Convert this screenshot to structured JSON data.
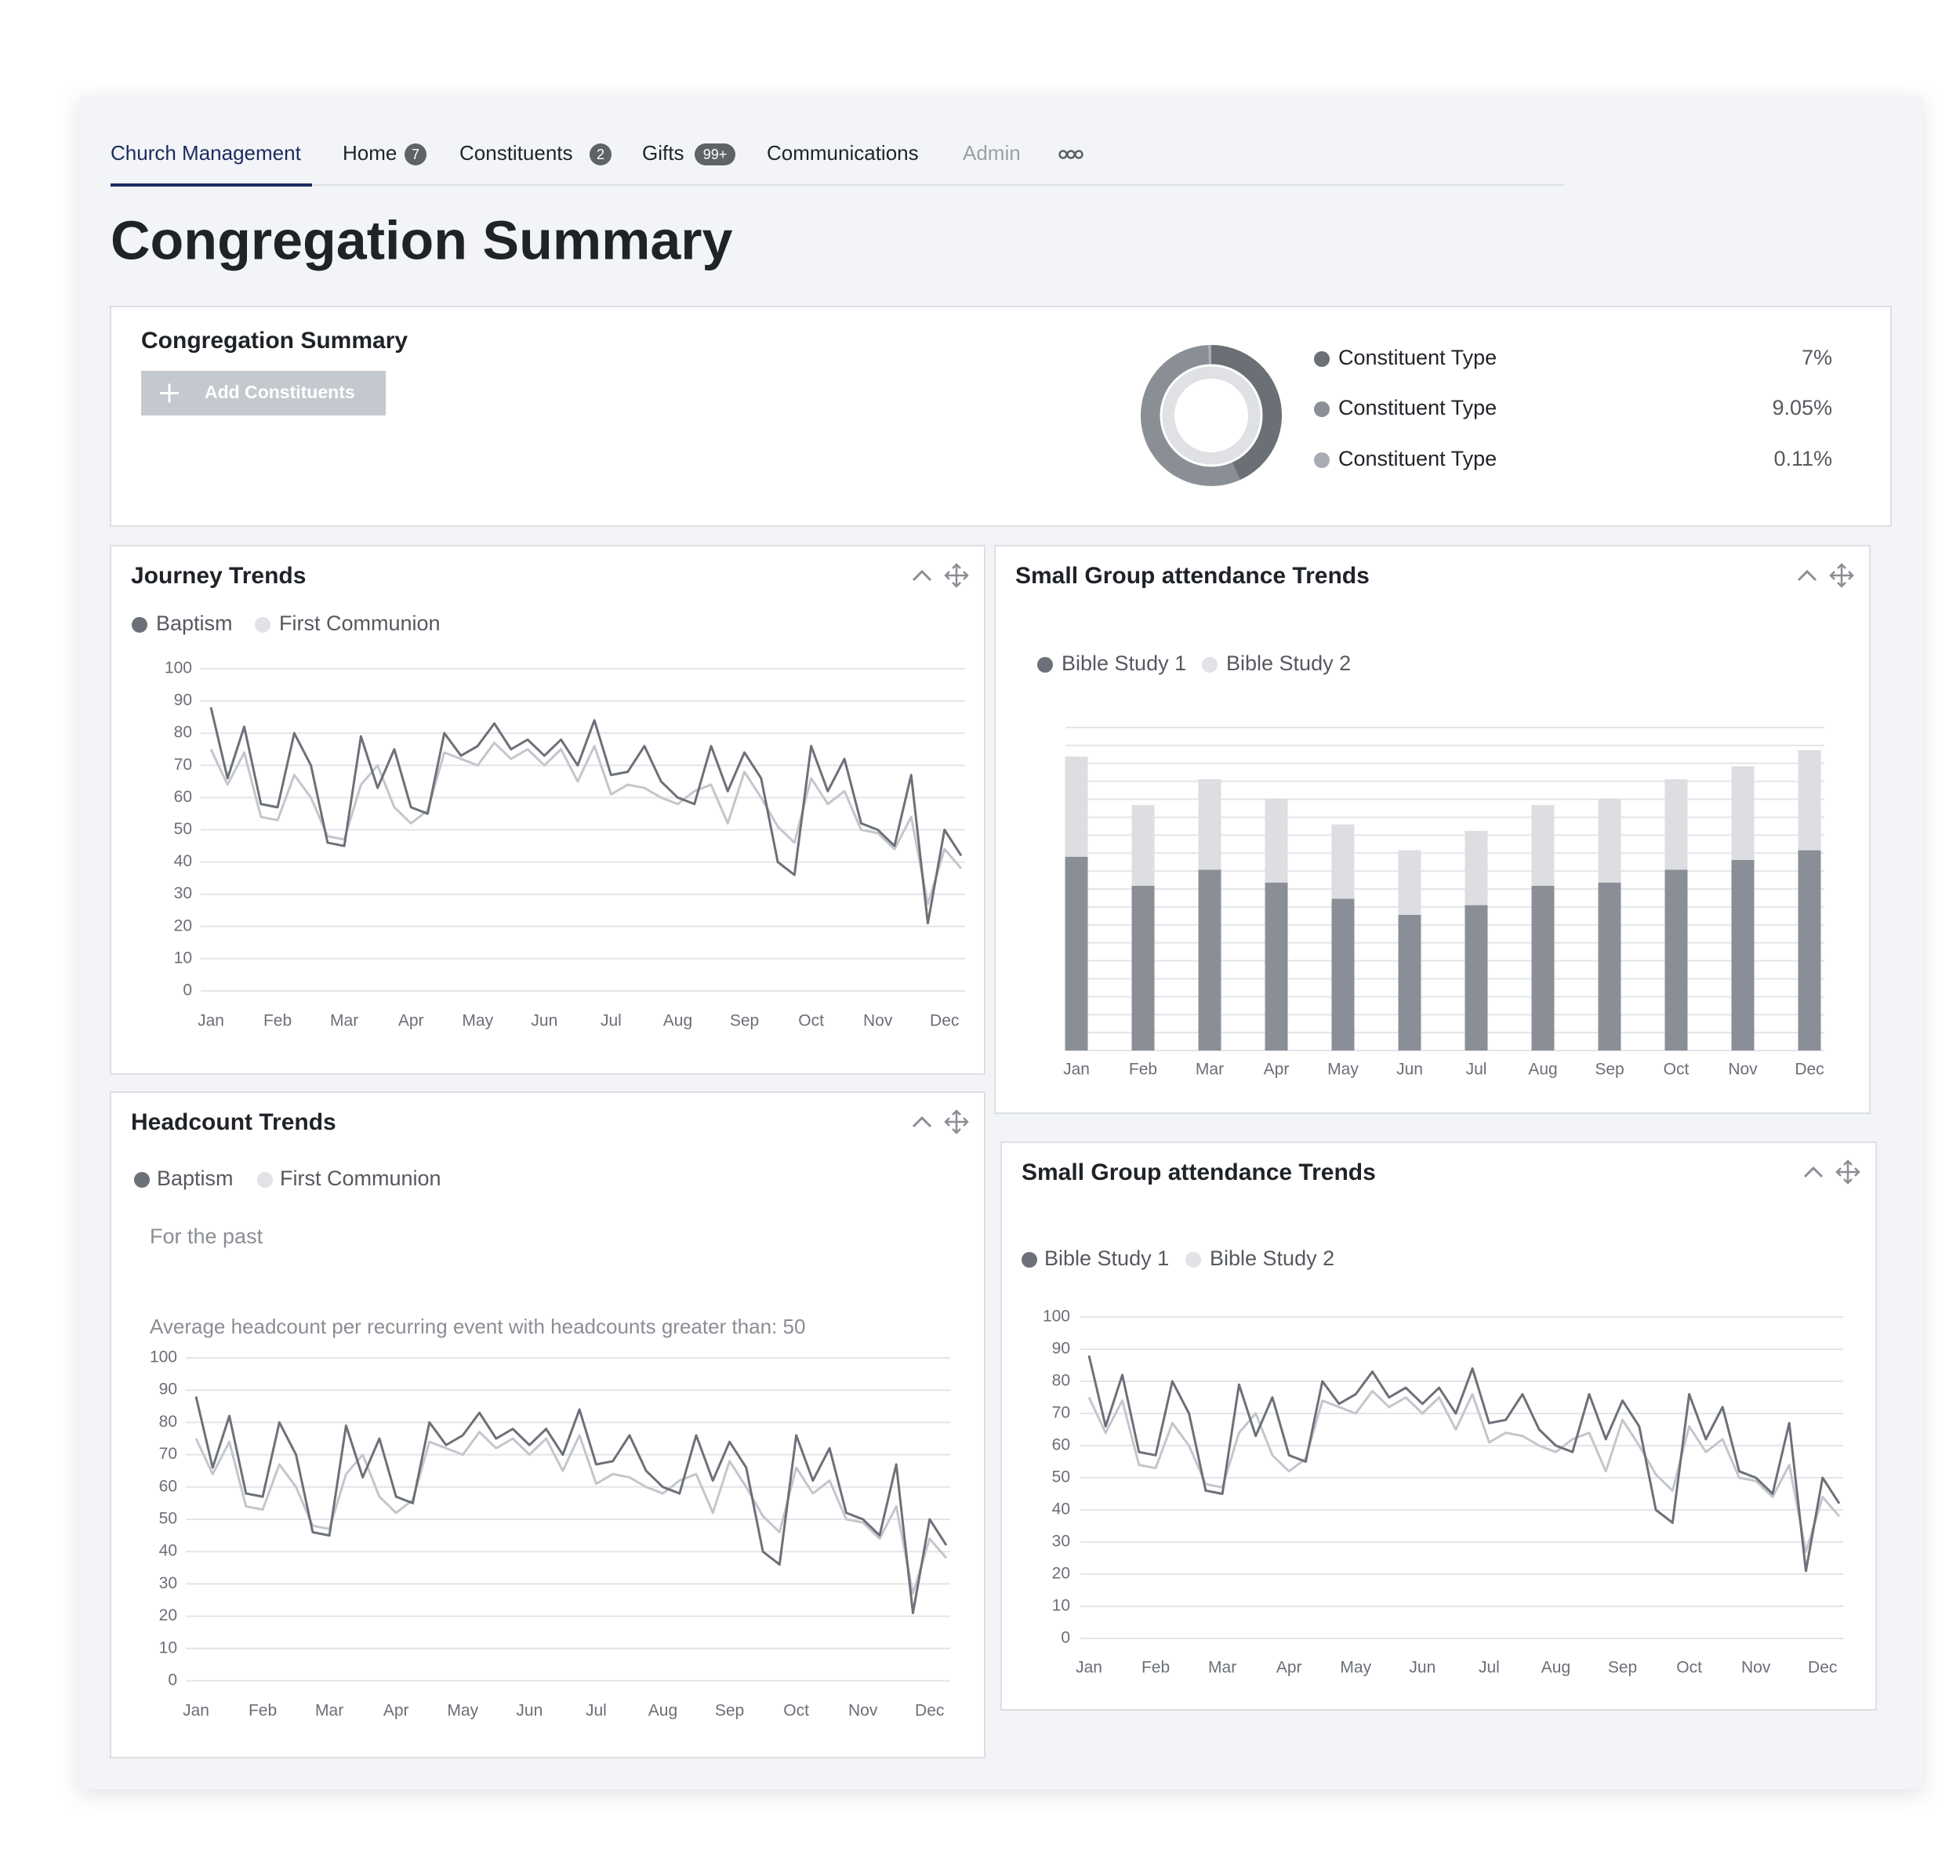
{
  "nav": [
    {
      "label": "Church Management"
    },
    {
      "label": "Home",
      "badge": "7"
    },
    {
      "label": "Constituents",
      "badge": "2"
    },
    {
      "label": "Gifts",
      "badge": "99+"
    },
    {
      "label": "Communications"
    },
    {
      "label": "Admin"
    }
  ],
  "title": "Congregation Summary",
  "summary": {
    "title": "Congregation Summary",
    "button": "Add Constituents"
  },
  "chart_data": [
    {
      "type": "donut",
      "categories": [
        "Constituent Type",
        "Constituent Type",
        "Constituent Type"
      ],
      "values": [
        7,
        9.05,
        0.11
      ],
      "value_labels": [
        "7%",
        "9.05%",
        "0.11%"
      ],
      "colors": [
        "#6b6f76",
        "#8a8e95",
        "#a9adb3"
      ]
    },
    {
      "type": "line",
      "title": "Journey Trends",
      "x": [
        0,
        0.25,
        0.5,
        0.75,
        1,
        1.25,
        1.5,
        1.75,
        2,
        2.25,
        2.5,
        2.75,
        3,
        3.25,
        3.5,
        3.75,
        4,
        4.25,
        4.5,
        4.75,
        5,
        5.25,
        5.5,
        5.75,
        6,
        6.25,
        6.5,
        6.75,
        7,
        7.25,
        7.5,
        7.75,
        8,
        8.25,
        8.5,
        8.75,
        9,
        9.25,
        9.5,
        9.75,
        10,
        10.25,
        10.5,
        10.75,
        11,
        11.25
      ],
      "xlim": [
        0,
        11.25
      ],
      "xticks": [
        {
          "value": 0,
          "label": "Jan"
        },
        {
          "value": 1,
          "label": "Feb"
        },
        {
          "value": 2,
          "label": "Mar"
        },
        {
          "value": 3,
          "label": "Apr"
        },
        {
          "value": 4,
          "label": "May"
        },
        {
          "value": 5,
          "label": "Jun"
        },
        {
          "value": 6,
          "label": "Jul"
        },
        {
          "value": 7,
          "label": "Aug"
        },
        {
          "value": 8,
          "label": "Sep"
        },
        {
          "value": 9,
          "label": "Oct"
        },
        {
          "value": 10,
          "label": "Nov"
        },
        {
          "value": 11,
          "label": "Dec"
        }
      ],
      "ylim": [
        0,
        100
      ],
      "yticks": [
        0,
        10,
        20,
        30,
        40,
        50,
        60,
        70,
        80,
        90,
        100
      ],
      "grid": true,
      "series": [
        {
          "name": "Baptism",
          "color": "#6c7078",
          "values": [
            88,
            66,
            82,
            58,
            57,
            80,
            70,
            46,
            45,
            79,
            63,
            75,
            57,
            55,
            80,
            73,
            76,
            83,
            75,
            78,
            73,
            78,
            70,
            84,
            67,
            68,
            76,
            65,
            60,
            58,
            76,
            62,
            74,
            66,
            40,
            36,
            76,
            62,
            72,
            52,
            50,
            45,
            67,
            21,
            50,
            42
          ]
        },
        {
          "name": "First Communion",
          "color": "#c3c6cb",
          "values": [
            75,
            64,
            74,
            54,
            53,
            67,
            60,
            48,
            47,
            64,
            70,
            57,
            52,
            56,
            74,
            72,
            70,
            77,
            72,
            75,
            70,
            75,
            65,
            76,
            61,
            64,
            63,
            60,
            58,
            62,
            64,
            52,
            68,
            60,
            51,
            46,
            66,
            58,
            62,
            50,
            49,
            44,
            54,
            27,
            44,
            38
          ]
        }
      ]
    },
    {
      "type": "bar",
      "title": "Small Group attendance Trends",
      "stacked": true,
      "categories": [
        "Jan",
        "Feb",
        "Mar",
        "Apr",
        "May",
        "Jun",
        "Jul",
        "Aug",
        "Sep",
        "Oct",
        "Nov",
        "Dec"
      ],
      "ylim": [
        0,
        100
      ],
      "grid": true,
      "series": [
        {
          "name": "Bible Study 1",
          "color": "#8a8f97",
          "values": [
            60,
            51,
            56,
            52,
            47,
            42,
            45,
            51,
            52,
            56,
            59,
            62
          ]
        },
        {
          "name": "Bible Study 2",
          "color": "#dcdee2",
          "values": [
            31,
            25,
            28,
            26,
            23,
            20,
            23,
            25,
            26,
            28,
            29,
            31
          ]
        }
      ]
    },
    {
      "type": "line",
      "title": "Headcount Trends",
      "subtitle": "For the past",
      "annotation": "Average headcount per recurring event with headcounts greater than: 50",
      "x": [
        0,
        0.25,
        0.5,
        0.75,
        1,
        1.25,
        1.5,
        1.75,
        2,
        2.25,
        2.5,
        2.75,
        3,
        3.25,
        3.5,
        3.75,
        4,
        4.25,
        4.5,
        4.75,
        5,
        5.25,
        5.5,
        5.75,
        6,
        6.25,
        6.5,
        6.75,
        7,
        7.25,
        7.5,
        7.75,
        8,
        8.25,
        8.5,
        8.75,
        9,
        9.25,
        9.5,
        9.75,
        10,
        10.25,
        10.5,
        10.75,
        11,
        11.25
      ],
      "xlim": [
        0,
        11.25
      ],
      "xticks": [
        {
          "value": 0,
          "label": "Jan"
        },
        {
          "value": 1,
          "label": "Feb"
        },
        {
          "value": 2,
          "label": "Mar"
        },
        {
          "value": 3,
          "label": "Apr"
        },
        {
          "value": 4,
          "label": "May"
        },
        {
          "value": 5,
          "label": "Jun"
        },
        {
          "value": 6,
          "label": "Jul"
        },
        {
          "value": 7,
          "label": "Aug"
        },
        {
          "value": 8,
          "label": "Sep"
        },
        {
          "value": 9,
          "label": "Oct"
        },
        {
          "value": 10,
          "label": "Nov"
        },
        {
          "value": 11,
          "label": "Dec"
        }
      ],
      "ylim": [
        0,
        100
      ],
      "yticks": [
        0,
        10,
        20,
        30,
        40,
        50,
        60,
        70,
        80,
        90,
        100
      ],
      "grid": true,
      "series": [
        {
          "name": "Baptism",
          "color": "#6c7078",
          "values": [
            88,
            66,
            82,
            58,
            57,
            80,
            70,
            46,
            45,
            79,
            63,
            75,
            57,
            55,
            80,
            73,
            76,
            83,
            75,
            78,
            73,
            78,
            70,
            84,
            67,
            68,
            76,
            65,
            60,
            58,
            76,
            62,
            74,
            66,
            40,
            36,
            76,
            62,
            72,
            52,
            50,
            45,
            67,
            21,
            50,
            42
          ]
        },
        {
          "name": "First Communion",
          "color": "#c3c6cb",
          "values": [
            75,
            64,
            74,
            54,
            53,
            67,
            60,
            48,
            47,
            64,
            70,
            57,
            52,
            56,
            74,
            72,
            70,
            77,
            72,
            75,
            70,
            75,
            65,
            76,
            61,
            64,
            63,
            60,
            58,
            62,
            64,
            52,
            68,
            60,
            51,
            46,
            66,
            58,
            62,
            50,
            49,
            44,
            54,
            27,
            44,
            38
          ]
        }
      ]
    },
    {
      "type": "line",
      "title": "Small Group attendance Trends",
      "x": [
        0,
        0.25,
        0.5,
        0.75,
        1,
        1.25,
        1.5,
        1.75,
        2,
        2.25,
        2.5,
        2.75,
        3,
        3.25,
        3.5,
        3.75,
        4,
        4.25,
        4.5,
        4.75,
        5,
        5.25,
        5.5,
        5.75,
        6,
        6.25,
        6.5,
        6.75,
        7,
        7.25,
        7.5,
        7.75,
        8,
        8.25,
        8.5,
        8.75,
        9,
        9.25,
        9.5,
        9.75,
        10,
        10.25,
        10.5,
        10.75,
        11,
        11.25
      ],
      "xlim": [
        0,
        11.25
      ],
      "xticks": [
        {
          "value": 0,
          "label": "Jan"
        },
        {
          "value": 1,
          "label": "Feb"
        },
        {
          "value": 2,
          "label": "Mar"
        },
        {
          "value": 3,
          "label": "Apr"
        },
        {
          "value": 4,
          "label": "May"
        },
        {
          "value": 5,
          "label": "Jun"
        },
        {
          "value": 6,
          "label": "Jul"
        },
        {
          "value": 7,
          "label": "Aug"
        },
        {
          "value": 8,
          "label": "Sep"
        },
        {
          "value": 9,
          "label": "Oct"
        },
        {
          "value": 10,
          "label": "Nov"
        },
        {
          "value": 11,
          "label": "Dec"
        }
      ],
      "ylim": [
        0,
        100
      ],
      "yticks": [
        0,
        10,
        20,
        30,
        40,
        50,
        60,
        70,
        80,
        90,
        100
      ],
      "grid": true,
      "series": [
        {
          "name": "Bible Study 1",
          "color": "#6c7078",
          "values": [
            88,
            66,
            82,
            58,
            57,
            80,
            70,
            46,
            45,
            79,
            63,
            75,
            57,
            55,
            80,
            73,
            76,
            83,
            75,
            78,
            73,
            78,
            70,
            84,
            67,
            68,
            76,
            65,
            60,
            58,
            76,
            62,
            74,
            66,
            40,
            36,
            76,
            62,
            72,
            52,
            50,
            45,
            67,
            21,
            50,
            42
          ]
        },
        {
          "name": "Bible Study 2",
          "color": "#c3c6cb",
          "values": [
            75,
            64,
            74,
            54,
            53,
            67,
            60,
            48,
            47,
            64,
            70,
            57,
            52,
            56,
            74,
            72,
            70,
            77,
            72,
            75,
            70,
            75,
            65,
            76,
            61,
            64,
            63,
            60,
            58,
            62,
            64,
            52,
            68,
            60,
            51,
            46,
            66,
            58,
            62,
            50,
            49,
            44,
            54,
            27,
            44,
            38
          ]
        }
      ]
    }
  ]
}
